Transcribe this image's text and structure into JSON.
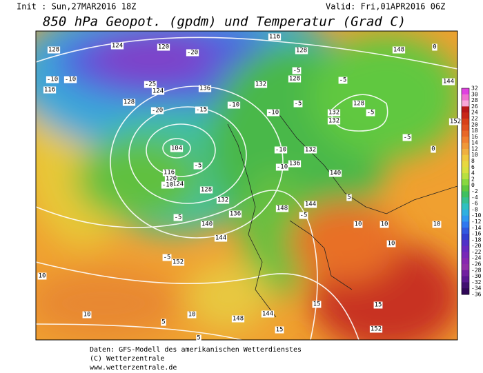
{
  "header": {
    "init": "Init : Sun,27MAR2016 18Z",
    "valid": "Valid: Fri,01APR2016 06Z",
    "title": "850 hPa Geopot. (gpdm) und Temperatur (Grad C)"
  },
  "colorbar": {
    "labels": [
      32,
      30,
      28,
      26,
      24,
      22,
      20,
      18,
      16,
      14,
      12,
      10,
      8,
      6,
      4,
      2,
      0,
      -2,
      -4,
      -6,
      -8,
      -10,
      -12,
      -14,
      -16,
      -18,
      -20,
      -22,
      -24,
      -26,
      -28,
      -30,
      -32,
      -34,
      -36
    ]
  },
  "map": {
    "contour_labels": [
      "128",
      "116",
      "128",
      "148",
      "0",
      "124",
      "120",
      "-25",
      "-20",
      "-10",
      "-10",
      "116",
      "128",
      "124",
      "136",
      "132",
      "-5",
      "128",
      "-5",
      "144",
      "128",
      "-5",
      "132",
      "132",
      "-10",
      "-5",
      "-10",
      "-15",
      "-20",
      "104",
      "-5",
      "116",
      "120",
      "124",
      "128",
      "-10",
      "132",
      "136",
      "140",
      "-5",
      "144",
      "152",
      "-5",
      "148",
      "144",
      "-5",
      "140",
      "136",
      "132",
      "-10",
      "-10",
      "152",
      "0",
      "-5",
      "5",
      "10",
      "10",
      "10",
      "10",
      "15",
      "15",
      "152",
      "15",
      "10",
      "10",
      "10",
      "5",
      "5",
      "148",
      "144"
    ]
  },
  "footer": {
    "lines": [
      "Daten: GFS-Modell des amerikanischen Wetterdienstes",
      "(C) Wetterzentrale",
      "www.wetterzentrale.de"
    ]
  }
}
